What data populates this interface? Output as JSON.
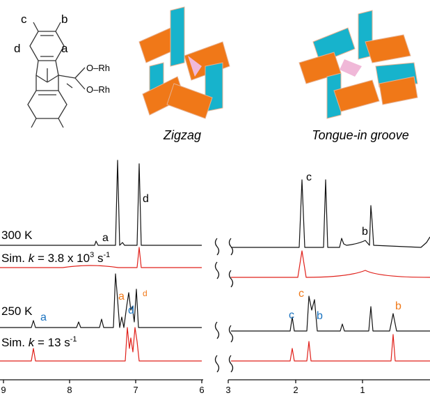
{
  "structure": {
    "labels": [
      "c",
      "b",
      "d",
      "a"
    ],
    "groups": [
      "O–Rh",
      "O–Rh"
    ]
  },
  "models": [
    {
      "caption": "Zigzag"
    },
    {
      "caption": "Tongue-in groove"
    }
  ],
  "spectra": {
    "left_ticks": [
      "9",
      "8",
      "7",
      "6"
    ],
    "right_ticks": [
      "3",
      "2",
      "1"
    ],
    "traces": [
      {
        "label": [
          "300 K"
        ]
      },
      {
        "label": [
          "Sim. ",
          "k",
          " = 3.8 x 10",
          "3",
          " s",
          "-1"
        ]
      },
      {
        "label": [
          "250 K"
        ]
      },
      {
        "label": [
          "Sim. ",
          "k",
          " = 13 s",
          "-1"
        ]
      }
    ],
    "peak_labels": [
      "a",
      "d",
      "c",
      "b",
      "a",
      "a",
      "d",
      "d",
      "c",
      "c",
      "b",
      "b"
    ]
  }
}
